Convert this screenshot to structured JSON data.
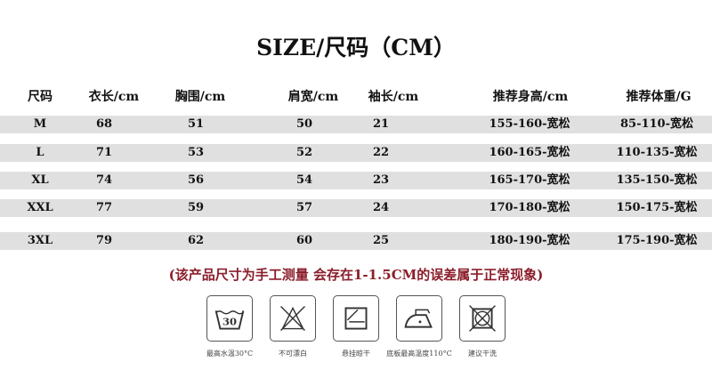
{
  "title": "SIZE/尺码（CM）",
  "headers": [
    "尺码",
    "衣长/cm",
    "胸围/cm",
    "肩宽/cm",
    "袖长/cm",
    "推荐身高/cm",
    "推荐体重/G"
  ],
  "rows": [
    [
      "M",
      "68",
      "51",
      "50",
      "21",
      "155-160-宽松",
      "85-110-宽松"
    ],
    [
      "L",
      "71",
      "53",
      "52",
      "22",
      "160-165-宽松",
      "110-135-宽松"
    ],
    [
      "XL",
      "74",
      "56",
      "54",
      "23",
      "165-170-宽松",
      "135-150-宽松"
    ],
    [
      "XXL",
      "77",
      "59",
      "57",
      "24",
      "170-180-宽松",
      "150-175-宽松"
    ],
    [
      "3XL",
      "79",
      "62",
      "60",
      "25",
      "180-190-宽松",
      "175-190-宽松"
    ]
  ],
  "note": "(该产品尺寸为手工测量 会存在1-1.5CM的误差属于正常现象)",
  "care": [
    {
      "icon": "wash-30-icon",
      "label": "最高水温30°C",
      "text": "30"
    },
    {
      "icon": "no-bleach-icon",
      "label": "不可漂白"
    },
    {
      "icon": "hang-dry-icon",
      "label": "悬挂晾干"
    },
    {
      "icon": "iron-icon",
      "label": "底板最高温度110°C"
    },
    {
      "icon": "no-tumble-dry-icon",
      "label": "建议干洗"
    }
  ],
  "colors": {
    "band": "#e0e0e0",
    "note": "#8b1e2b"
  }
}
